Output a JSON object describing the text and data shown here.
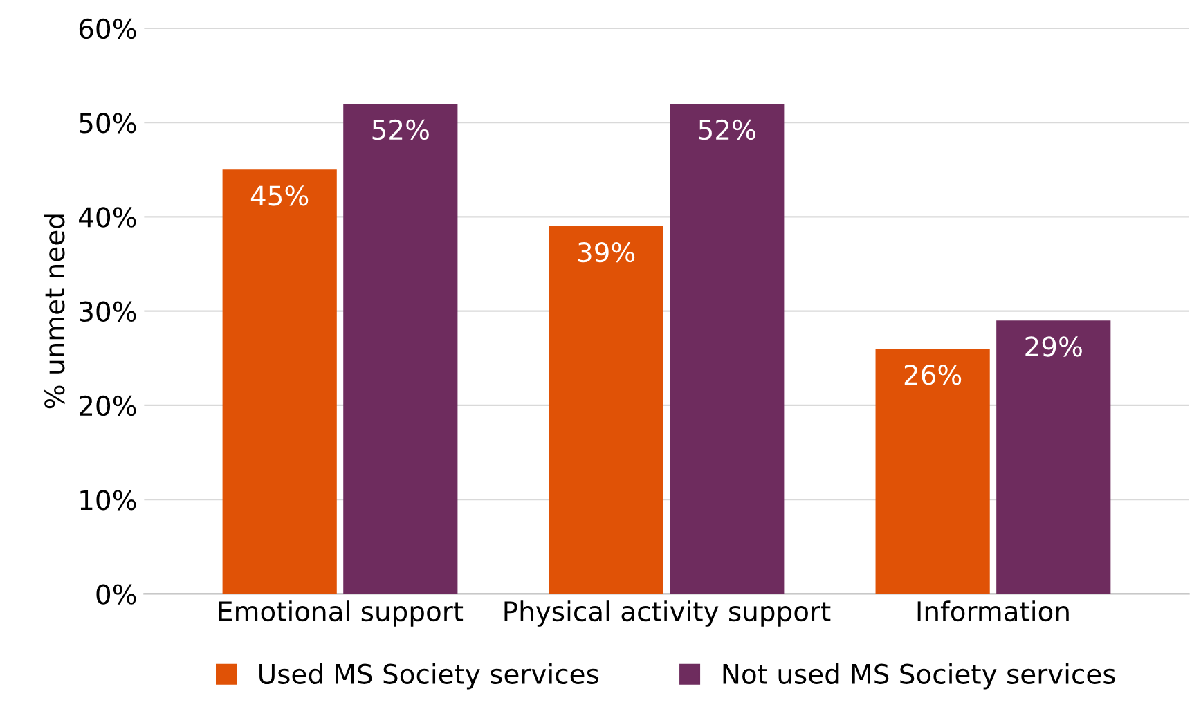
{
  "chart_data": {
    "type": "bar",
    "ylabel": "% unmet need",
    "categories": [
      "Emotional support",
      "Physical activity support",
      "Information"
    ],
    "series": [
      {
        "name": "Used MS Society services",
        "color": "#e05206",
        "values": [
          45,
          39,
          26
        ],
        "value_labels": [
          "45%",
          "39%",
          "26%"
        ]
      },
      {
        "name": "Not used MS Society services",
        "color": "#6e2c5e",
        "values": [
          52,
          52,
          29
        ],
        "value_labels": [
          "52%",
          "52%",
          "29%"
        ]
      }
    ],
    "ylim": [
      0,
      60
    ],
    "yticks": [
      {
        "value": 0,
        "label": "0%"
      },
      {
        "value": 10,
        "label": "10%"
      },
      {
        "value": 20,
        "label": "20%"
      },
      {
        "value": 30,
        "label": "30%"
      },
      {
        "value": 40,
        "label": "40%"
      },
      {
        "value": 50,
        "label": "50%"
      },
      {
        "value": 60,
        "label": "60%"
      }
    ],
    "grid": "y",
    "legend": "bottom"
  }
}
